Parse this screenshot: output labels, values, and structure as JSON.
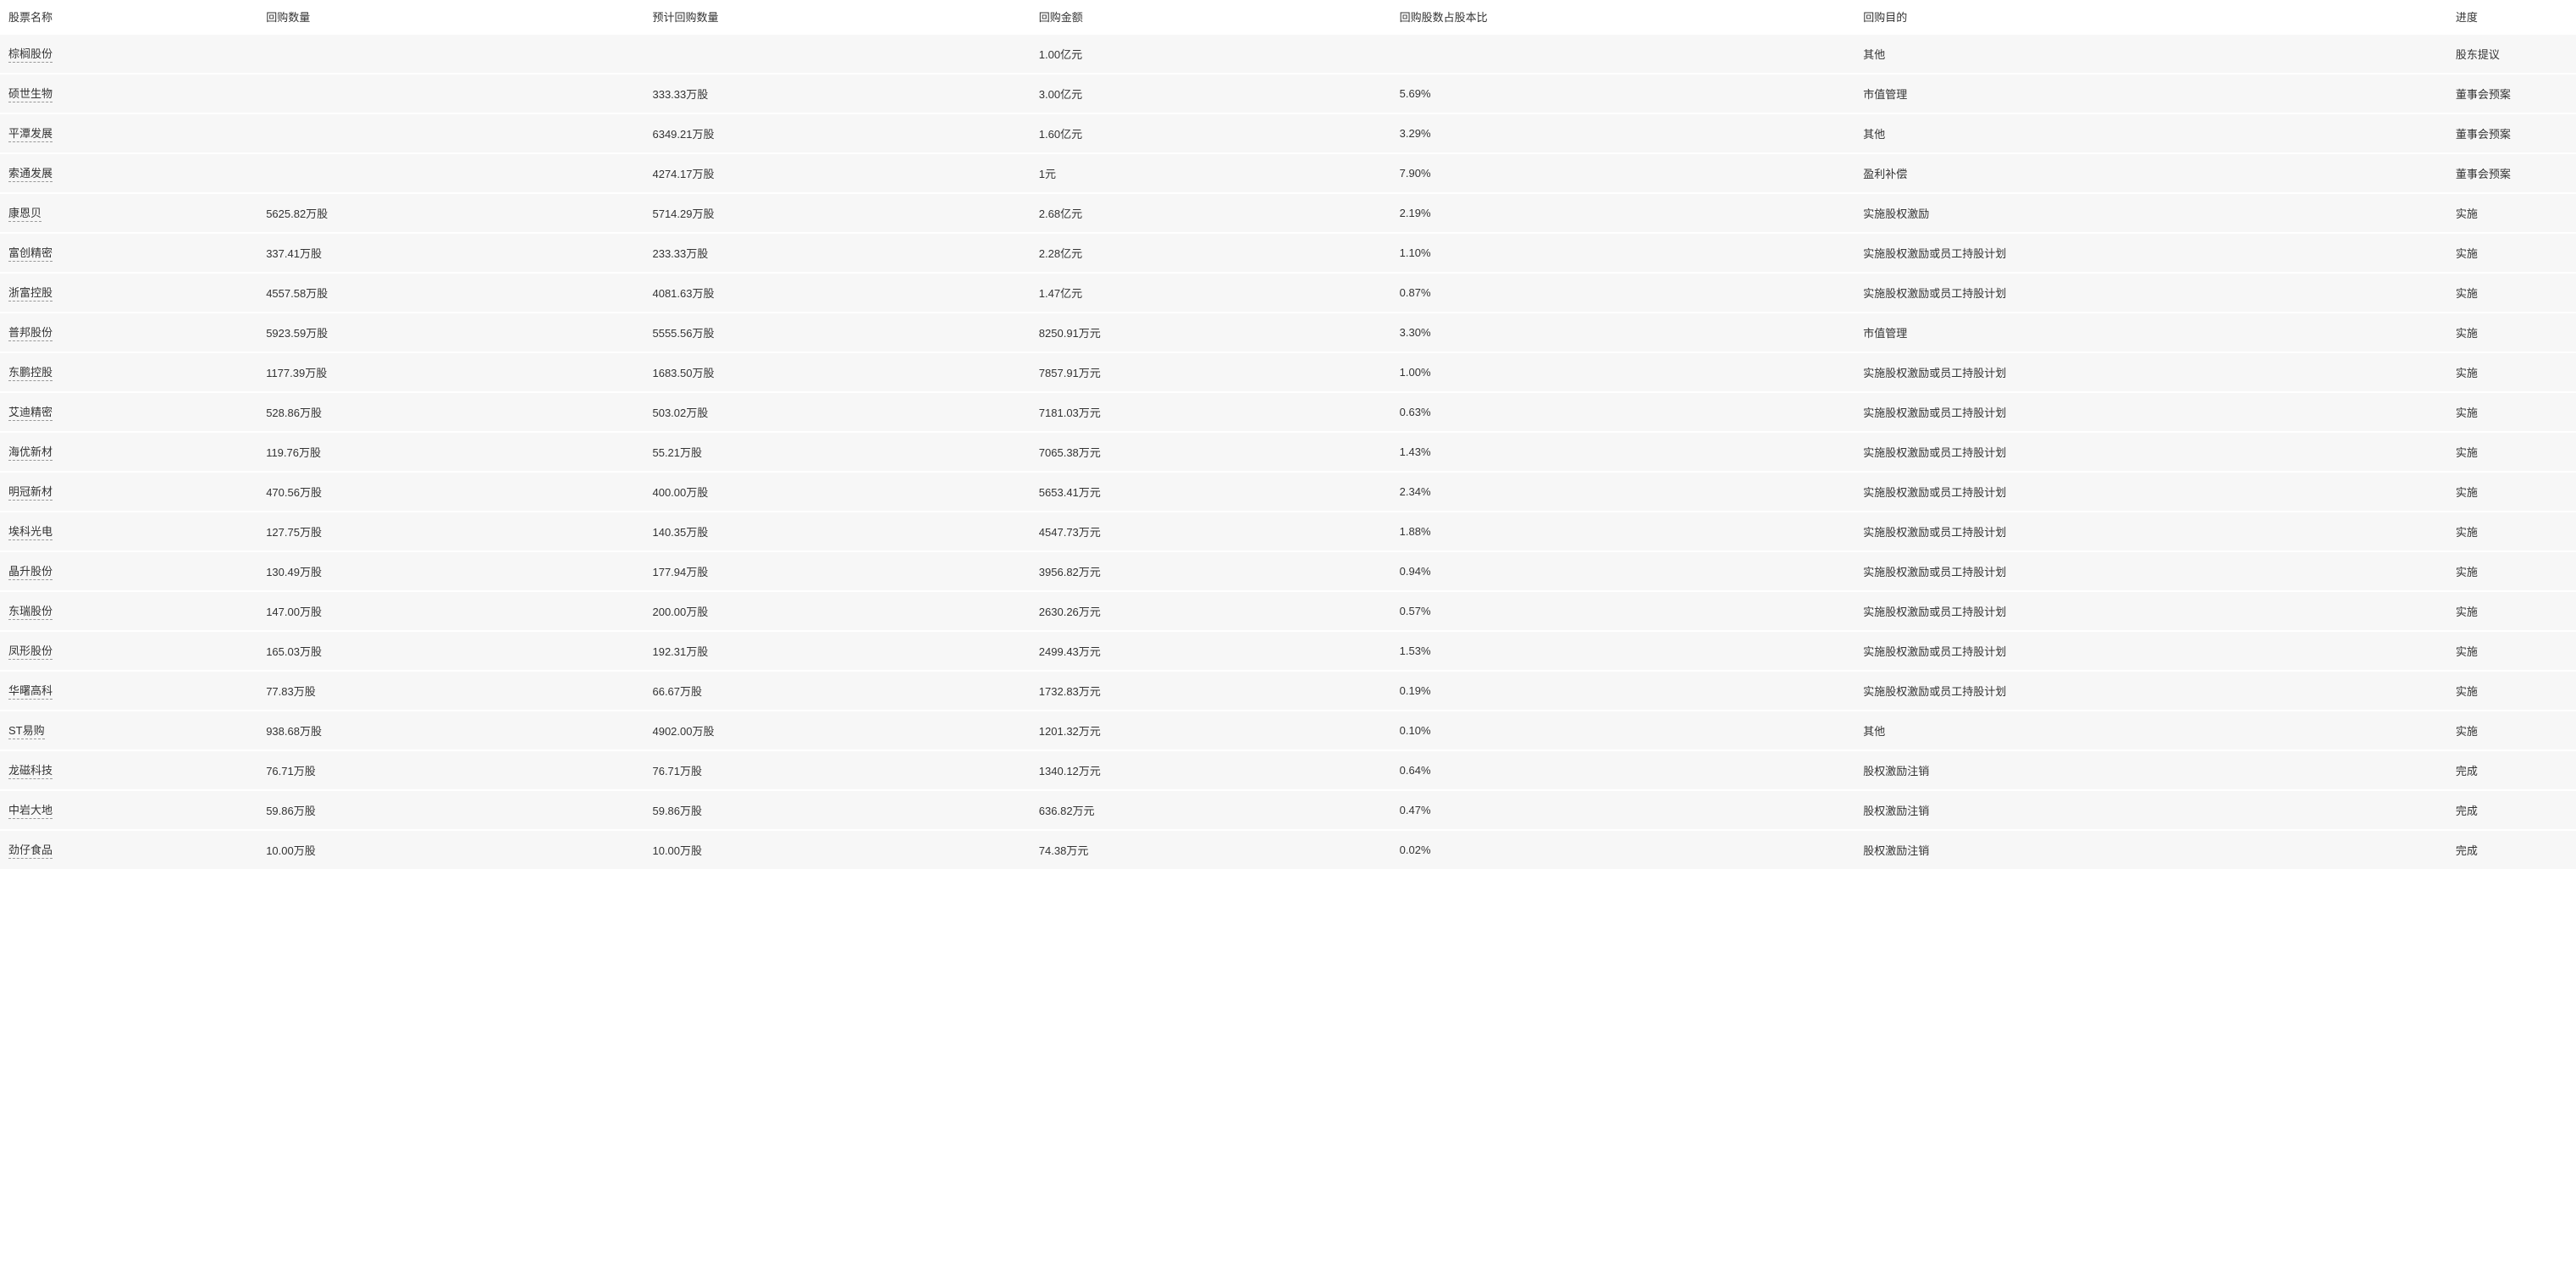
{
  "table": {
    "columns": [
      {
        "key": "name",
        "label": "股票名称"
      },
      {
        "key": "qty",
        "label": "回购数量"
      },
      {
        "key": "estQty",
        "label": "预计回购数量"
      },
      {
        "key": "amount",
        "label": "回购金额"
      },
      {
        "key": "ratio",
        "label": "回购股数占股本比"
      },
      {
        "key": "purpose",
        "label": "回购目的"
      },
      {
        "key": "progress",
        "label": "进度"
      }
    ],
    "rows": [
      {
        "name": "棕榈股份",
        "qty": "",
        "estQty": "",
        "amount": "1.00亿元",
        "ratio": "",
        "purpose": "其他",
        "progress": "股东提议"
      },
      {
        "name": "硕世生物",
        "qty": "",
        "estQty": "333.33万股",
        "amount": "3.00亿元",
        "ratio": "5.69%",
        "purpose": "市值管理",
        "progress": "董事会预案"
      },
      {
        "name": "平潭发展",
        "qty": "",
        "estQty": "6349.21万股",
        "amount": "1.60亿元",
        "ratio": "3.29%",
        "purpose": "其他",
        "progress": "董事会预案"
      },
      {
        "name": "索通发展",
        "qty": "",
        "estQty": "4274.17万股",
        "amount": "1元",
        "ratio": "7.90%",
        "purpose": "盈利补偿",
        "progress": "董事会预案"
      },
      {
        "name": "康恩贝",
        "qty": "5625.82万股",
        "estQty": "5714.29万股",
        "amount": "2.68亿元",
        "ratio": "2.19%",
        "purpose": "实施股权激励",
        "progress": "实施"
      },
      {
        "name": "富创精密",
        "qty": "337.41万股",
        "estQty": "233.33万股",
        "amount": "2.28亿元",
        "ratio": "1.10%",
        "purpose": "实施股权激励或员工持股计划",
        "progress": "实施"
      },
      {
        "name": "浙富控股",
        "qty": "4557.58万股",
        "estQty": "4081.63万股",
        "amount": "1.47亿元",
        "ratio": "0.87%",
        "purpose": "实施股权激励或员工持股计划",
        "progress": "实施"
      },
      {
        "name": "普邦股份",
        "qty": "5923.59万股",
        "estQty": "5555.56万股",
        "amount": "8250.91万元",
        "ratio": "3.30%",
        "purpose": "市值管理",
        "progress": "实施"
      },
      {
        "name": "东鹏控股",
        "qty": "1177.39万股",
        "estQty": "1683.50万股",
        "amount": "7857.91万元",
        "ratio": "1.00%",
        "purpose": "实施股权激励或员工持股计划",
        "progress": "实施"
      },
      {
        "name": "艾迪精密",
        "qty": "528.86万股",
        "estQty": "503.02万股",
        "amount": "7181.03万元",
        "ratio": "0.63%",
        "purpose": "实施股权激励或员工持股计划",
        "progress": "实施"
      },
      {
        "name": "海优新材",
        "qty": "119.76万股",
        "estQty": "55.21万股",
        "amount": "7065.38万元",
        "ratio": "1.43%",
        "purpose": "实施股权激励或员工持股计划",
        "progress": "实施"
      },
      {
        "name": "明冠新材",
        "qty": "470.56万股",
        "estQty": "400.00万股",
        "amount": "5653.41万元",
        "ratio": "2.34%",
        "purpose": "实施股权激励或员工持股计划",
        "progress": "实施"
      },
      {
        "name": "埃科光电",
        "qty": "127.75万股",
        "estQty": "140.35万股",
        "amount": "4547.73万元",
        "ratio": "1.88%",
        "purpose": "实施股权激励或员工持股计划",
        "progress": "实施"
      },
      {
        "name": "晶升股份",
        "qty": "130.49万股",
        "estQty": "177.94万股",
        "amount": "3956.82万元",
        "ratio": "0.94%",
        "purpose": "实施股权激励或员工持股计划",
        "progress": "实施"
      },
      {
        "name": "东瑞股份",
        "qty": "147.00万股",
        "estQty": "200.00万股",
        "amount": "2630.26万元",
        "ratio": "0.57%",
        "purpose": "实施股权激励或员工持股计划",
        "progress": "实施"
      },
      {
        "name": "凤形股份",
        "qty": "165.03万股",
        "estQty": "192.31万股",
        "amount": "2499.43万元",
        "ratio": "1.53%",
        "purpose": "实施股权激励或员工持股计划",
        "progress": "实施"
      },
      {
        "name": "华曙高科",
        "qty": "77.83万股",
        "estQty": "66.67万股",
        "amount": "1732.83万元",
        "ratio": "0.19%",
        "purpose": "实施股权激励或员工持股计划",
        "progress": "实施"
      },
      {
        "name": "ST易购",
        "qty": "938.68万股",
        "estQty": "4902.00万股",
        "amount": "1201.32万元",
        "ratio": "0.10%",
        "purpose": "其他",
        "progress": "实施"
      },
      {
        "name": "龙磁科技",
        "qty": "76.71万股",
        "estQty": "76.71万股",
        "amount": "1340.12万元",
        "ratio": "0.64%",
        "purpose": "股权激励注销",
        "progress": "完成"
      },
      {
        "name": "中岩大地",
        "qty": "59.86万股",
        "estQty": "59.86万股",
        "amount": "636.82万元",
        "ratio": "0.47%",
        "purpose": "股权激励注销",
        "progress": "完成"
      },
      {
        "name": "劲仔食品",
        "qty": "10.00万股",
        "estQty": "10.00万股",
        "amount": "74.38万元",
        "ratio": "0.02%",
        "purpose": "股权激励注销",
        "progress": "完成"
      }
    ]
  }
}
